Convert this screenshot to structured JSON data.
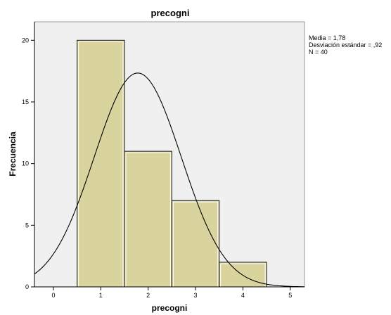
{
  "chart_data": {
    "type": "bar",
    "title": "precogni",
    "xlabel": "precogni",
    "ylabel": "Frecuencia",
    "bin_edges": [
      0.5,
      1.5,
      2.5,
      3.5,
      4.5
    ],
    "bins": [
      {
        "label": "1",
        "value": 20
      },
      {
        "label": "2",
        "value": 11
      },
      {
        "label": "3",
        "value": 7
      },
      {
        "label": "4",
        "value": 2
      }
    ],
    "xlim": [
      -0.4,
      5.3
    ],
    "ylim": [
      0,
      21.5
    ],
    "x_ticks": [
      "0",
      "1",
      "2",
      "3",
      "4",
      "5"
    ],
    "y_ticks": [
      "0",
      "5",
      "10",
      "15",
      "20"
    ],
    "normal_curve": {
      "mean": 1.78,
      "sd": 0.92,
      "n": 40,
      "bin_width": 1
    },
    "stats": {
      "mean_text": "Media = 1,78",
      "sd_text": "Desviación estándar = ,92",
      "n_text": "N = 40"
    },
    "colors": {
      "plot_bg": "#f0f0f0",
      "bar_fill": "#d9d39d",
      "bar_edge": "#1a1a1a",
      "curve": "#000000"
    },
    "grid": false,
    "legend": "none"
  }
}
